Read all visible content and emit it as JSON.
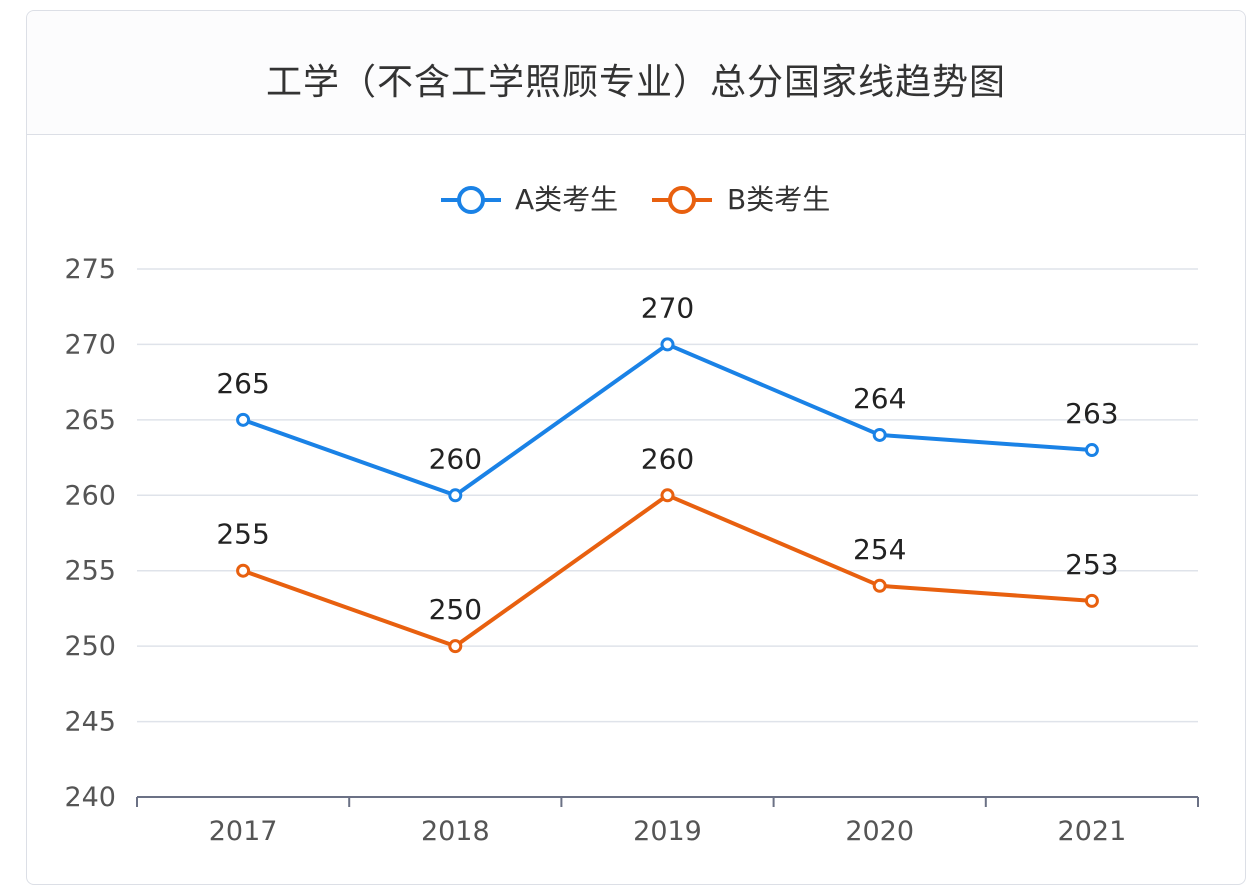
{
  "title": "工学（不含工学照顾专业）总分国家线趋势图",
  "chart_data": {
    "type": "line",
    "title": "工学（不含工学照顾专业）总分国家线趋势图",
    "categories": [
      "2017",
      "2018",
      "2019",
      "2020",
      "2021"
    ],
    "series": [
      {
        "name": "A类考生",
        "values": [
          265,
          260,
          270,
          264,
          263
        ],
        "color": "#1a82e6"
      },
      {
        "name": "B类考生",
        "values": [
          255,
          250,
          260,
          254,
          253
        ],
        "color": "#e8600f"
      }
    ],
    "ylim": [
      240,
      275
    ],
    "yticks": [
      240,
      245,
      250,
      255,
      260,
      265,
      270,
      275
    ],
    "grid": true,
    "legend_position": "top-center",
    "xlabel": "",
    "ylabel": ""
  }
}
